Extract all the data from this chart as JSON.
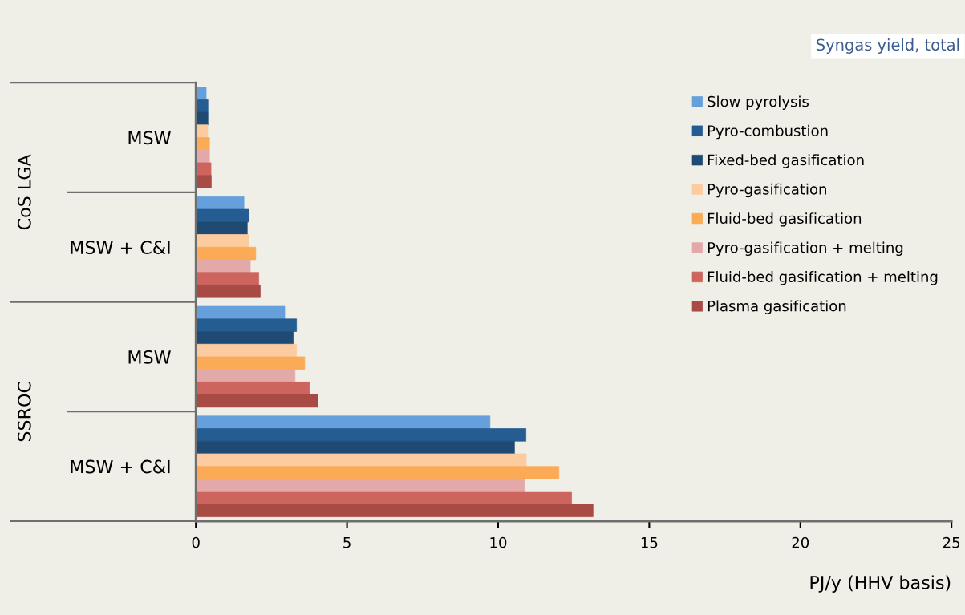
{
  "chart_data": {
    "type": "bar",
    "orientation": "horizontal",
    "title": "Syngas yield, total",
    "xlabel": "PJ/y (HHV basis)",
    "categories": [
      "MSW",
      "MSW + C&I",
      "MSW",
      "MSW + C&I"
    ],
    "annotations": [
      "CoS LGA",
      "SSROC"
    ],
    "series": [
      {
        "name": "Slow pyrolysis",
        "color": "#65a0dc",
        "values": [
          0.34,
          1.59,
          2.94,
          9.73
        ]
      },
      {
        "name": "Pyro-combustion",
        "color": "#255c91",
        "values": [
          0.4,
          1.75,
          3.33,
          10.92
        ]
      },
      {
        "name": "Fixed-bed gasification",
        "color": "#1f4a73",
        "values": [
          0.4,
          1.7,
          3.22,
          10.54
        ]
      },
      {
        "name": "Pyro-gasification",
        "color": "#fdcba0",
        "values": [
          0.39,
          1.75,
          3.33,
          10.93
        ]
      },
      {
        "name": "Fluid-bed gasification",
        "color": "#fbaa55",
        "values": [
          0.45,
          1.98,
          3.6,
          12.01
        ]
      },
      {
        "name": "Pyro-gasification + melting",
        "color": "#e2a9a8",
        "values": [
          0.45,
          1.8,
          3.28,
          10.87
        ]
      },
      {
        "name": "Fluid-bed gasification + melting",
        "color": "#cd645e",
        "values": [
          0.5,
          2.08,
          3.76,
          12.43
        ]
      },
      {
        "name": "Plasma gasification",
        "color": "#a84b44",
        "values": [
          0.51,
          2.13,
          4.03,
          13.14
        ]
      }
    ],
    "xlim": [
      0,
      25
    ],
    "xticks": [
      0,
      5,
      10,
      15,
      20,
      25
    ],
    "grid": false,
    "legend": "top right"
  }
}
